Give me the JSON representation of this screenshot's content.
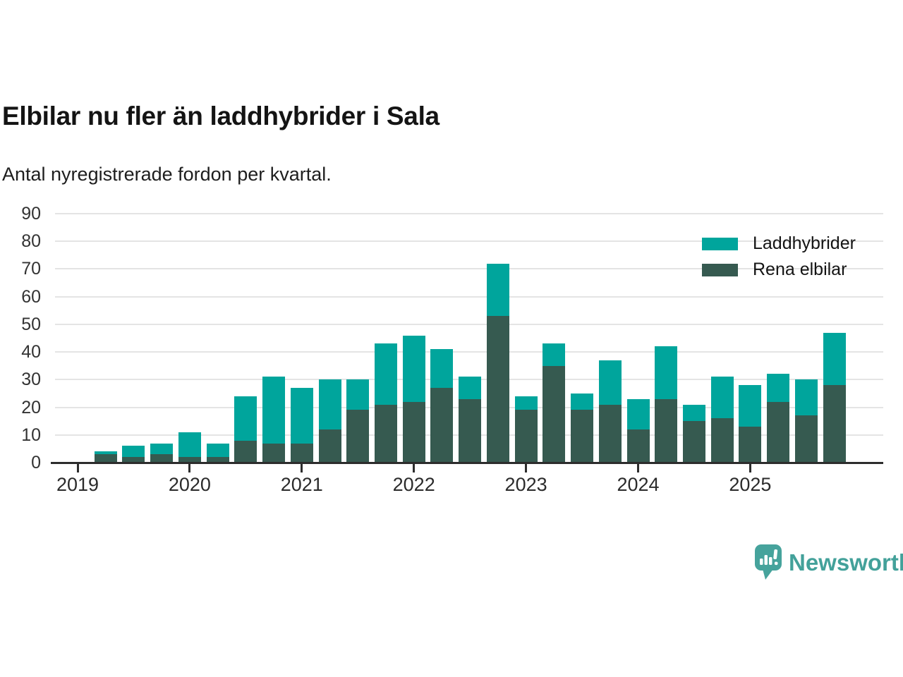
{
  "title": "Elbilar nu fler än laddhybrider i Sala",
  "subtitle": "Antal nyregistrerade fordon per kvartal.",
  "legend": {
    "items": [
      {
        "label": "Laddhybrider",
        "color": "#00a59c"
      },
      {
        "label": "Rena elbilar",
        "color": "#365a50"
      }
    ]
  },
  "branding": {
    "name": "Newsworthy",
    "color": "#43a19a",
    "icon": "speech-bubble-bar-chart-icon"
  },
  "chart_data": {
    "type": "bar",
    "stacked": true,
    "title": "Elbilar nu fler än laddhybrider i Sala",
    "subtitle": "Antal nyregistrerade fordon per kvartal.",
    "xlabel": "",
    "ylabel": "",
    "ylim": [
      0,
      90
    ],
    "yticks": [
      0,
      10,
      20,
      30,
      40,
      50,
      60,
      70,
      80,
      90
    ],
    "xticks": [
      "2019",
      "2020",
      "2021",
      "2022",
      "2023",
      "2024",
      "2025"
    ],
    "grid": true,
    "legend_position": "top-right",
    "x": [
      "2019 Q1",
      "2019 Q2",
      "2019 Q3",
      "2019 Q4",
      "2020 Q1",
      "2020 Q2",
      "2020 Q3",
      "2020 Q4",
      "2021 Q1",
      "2021 Q2",
      "2021 Q3",
      "2021 Q4",
      "2022 Q1",
      "2022 Q2",
      "2022 Q3",
      "2022 Q4",
      "2023 Q1",
      "2023 Q2",
      "2023 Q3",
      "2023 Q4",
      "2024 Q1",
      "2024 Q2",
      "2024 Q3",
      "2024 Q4",
      "2025 Q1",
      "2025 Q2",
      "2025 Q3",
      "2025 Q4"
    ],
    "series": [
      {
        "name": "Rena elbilar",
        "color": "#365a50",
        "values": [
          0,
          3,
          2,
          3,
          2,
          2,
          8,
          7,
          7,
          12,
          19,
          21,
          22,
          27,
          23,
          53,
          19,
          35,
          19,
          21,
          12,
          23,
          15,
          16,
          13,
          22,
          17,
          28
        ]
      },
      {
        "name": "Laddhybrider",
        "color": "#00a59c",
        "values": [
          0,
          1,
          4,
          4,
          9,
          5,
          16,
          24,
          20,
          18,
          11,
          22,
          24,
          14,
          8,
          19,
          5,
          8,
          6,
          16,
          11,
          19,
          6,
          15,
          15,
          10,
          13,
          19
        ]
      }
    ],
    "totals": [
      0,
      4,
      6,
      7,
      11,
      7,
      24,
      31,
      27,
      30,
      30,
      43,
      46,
      41,
      31,
      72,
      24,
      43,
      25,
      37,
      23,
      42,
      21,
      31,
      28,
      32,
      30,
      47
    ]
  }
}
